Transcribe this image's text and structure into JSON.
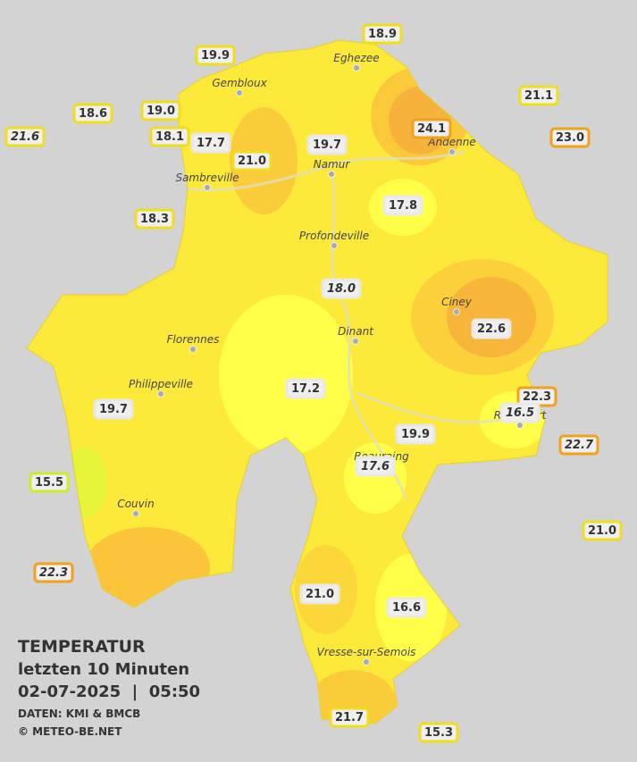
{
  "title_block": {
    "title": "TEMPERATUR",
    "subtitle": "letzten 10 Minuten",
    "datetime": "02-07-2025  |  05:50",
    "source": "DATEN: KMI & BMCB",
    "credit": "© METEO-BE.NET"
  },
  "stations": [
    {
      "value": "18.9",
      "color": "#f0de1c"
    },
    {
      "value": "19.9",
      "color": "#f0de1c"
    },
    {
      "value": "21.1",
      "color": "#f0de1c"
    },
    {
      "value": "18.6",
      "color": "#f0de1c"
    },
    {
      "value": "19.0",
      "color": "#f0de1c"
    },
    {
      "value": "21.6",
      "color": "#f0de1c",
      "italic": true
    },
    {
      "value": "18.1",
      "color": "#f0de1c"
    },
    {
      "value": "17.7",
      "color": "#e8e8e8"
    },
    {
      "value": "24.1",
      "color": "#f0a21c"
    },
    {
      "value": "23.0",
      "color": "#f0a21c"
    },
    {
      "value": "19.7",
      "color": "#e8e8e8"
    },
    {
      "value": "21.0",
      "color": "#f0de1c"
    },
    {
      "value": "18.3",
      "color": "#f0de1c"
    },
    {
      "value": "17.8",
      "color": "#e8e8e8"
    },
    {
      "value": "18.0",
      "color": "#e8e8e8",
      "italic": true
    },
    {
      "value": "22.6",
      "color": "#e8e8e8"
    },
    {
      "value": "17.2",
      "color": "#e8e8e8"
    },
    {
      "value": "22.3",
      "color": "#f0a21c"
    },
    {
      "value": "16.5",
      "color": "#e8e8e8",
      "italic": true
    },
    {
      "value": "19.7",
      "color": "#e8e8e8"
    },
    {
      "value": "22.7",
      "color": "#f0a21c",
      "italic": true
    },
    {
      "value": "19.9",
      "color": "#e8e8e8"
    },
    {
      "value": "17.6",
      "color": "#e8e8e8",
      "italic": true
    },
    {
      "value": "15.5",
      "color": "#cdec2c"
    },
    {
      "value": "21.0",
      "color": "#f0de1c"
    },
    {
      "value": "22.3",
      "color": "#f0a21c",
      "italic": true
    },
    {
      "value": "21.0",
      "color": "#e8e8e8"
    },
    {
      "value": "16.6",
      "color": "#e8e8e8"
    },
    {
      "value": "21.7",
      "color": "#f0de1c"
    },
    {
      "value": "15.3",
      "color": "#f0de1c"
    }
  ],
  "towns": [
    "Eghezee",
    "Gembloux",
    "Andenne",
    "Namur",
    "Sambreville",
    "Profondeville",
    "Ciney",
    "Dinant",
    "Florennes",
    "Philippeville",
    "Rochefort",
    "Beauraing",
    "Couvin",
    "Vresse-sur-Semois"
  ]
}
